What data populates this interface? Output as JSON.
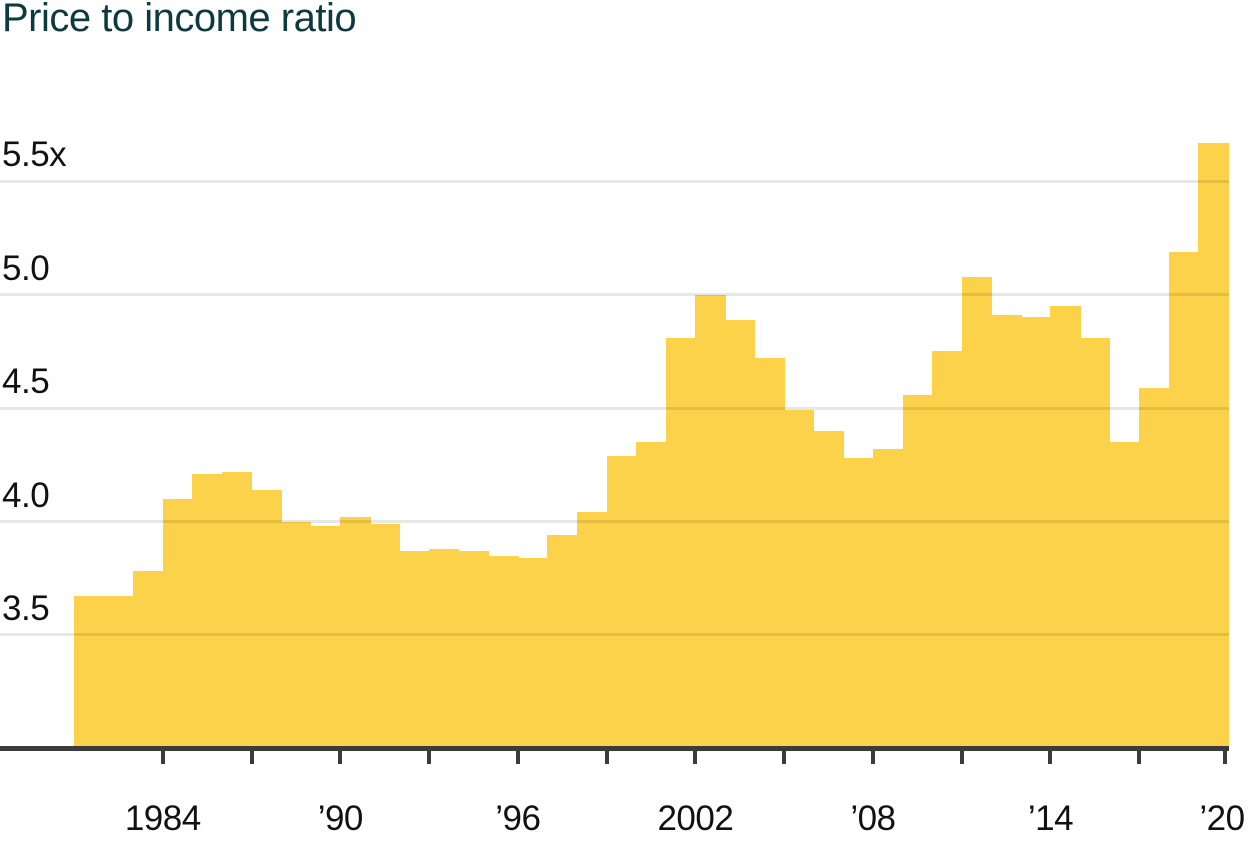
{
  "page": {
    "title": "Price to income ratio"
  },
  "chart_data": {
    "type": "bar",
    "title": "Price to income ratio",
    "xlabel": "",
    "ylabel": "",
    "unit_suffix": "x",
    "x": [
      1982,
      1983,
      1984,
      1985,
      1986,
      1987,
      1988,
      1989,
      1990,
      1991,
      1992,
      1993,
      1994,
      1995,
      1996,
      1997,
      1998,
      1999,
      2000,
      2001,
      2002,
      2003,
      2004,
      2005,
      2006,
      2007,
      2008,
      2009,
      2010,
      2011,
      2012,
      2013,
      2014,
      2015,
      2016,
      2017,
      2018,
      2019,
      2020
    ],
    "values": [
      3.67,
      3.67,
      3.78,
      4.1,
      4.21,
      4.22,
      4.14,
      4.0,
      3.98,
      4.02,
      3.99,
      3.87,
      3.88,
      3.87,
      3.85,
      3.84,
      3.94,
      4.04,
      4.29,
      4.35,
      4.81,
      5.0,
      4.89,
      4.72,
      4.49,
      4.4,
      4.28,
      4.32,
      4.56,
      4.75,
      5.08,
      4.91,
      4.9,
      4.95,
      4.81,
      4.35,
      4.59,
      5.19,
      5.67
    ],
    "ylim": [
      3.0,
      5.75
    ],
    "grid": true,
    "legend": "none",
    "gridline_values": [
      3.5,
      4.0,
      4.5,
      5.0,
      5.5
    ],
    "y_tick_labels": [
      "3.5",
      "4.0",
      "4.5",
      "5.0",
      "5.5x"
    ],
    "x_tick_years": [
      1984,
      1987,
      1990,
      1993,
      1996,
      1999,
      2002,
      2005,
      2008,
      2011,
      2014,
      2017,
      2020
    ],
    "x_tick_labels": [
      {
        "year": 1984,
        "label": "1984"
      },
      {
        "year": 1990,
        "label": "’90"
      },
      {
        "year": 1996,
        "label": "’96"
      },
      {
        "year": 2002,
        "label": "2002"
      },
      {
        "year": 2008,
        "label": "’08"
      },
      {
        "year": 2014,
        "label": "’14"
      },
      {
        "year": 2020,
        "label": "’20"
      }
    ],
    "colors": {
      "bar": "#fcd24b",
      "title": "#0c3a40",
      "axis": "#3b3b3b",
      "text": "#111111",
      "gridline_over_white": "#e7e7e7"
    }
  }
}
